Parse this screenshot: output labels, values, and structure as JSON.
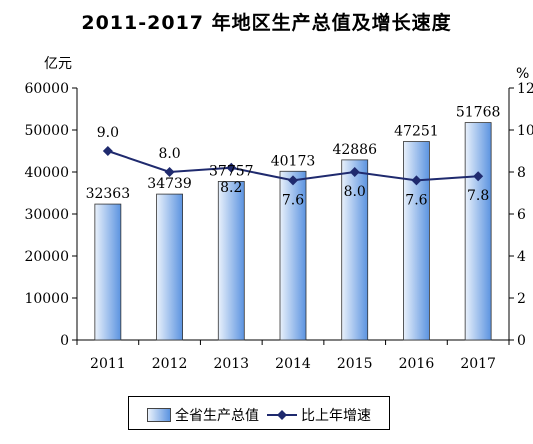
{
  "chart_data": {
    "type": "bar+line",
    "title": "2011-2017 年地区生产总值及增长速度",
    "categories": [
      "2011",
      "2012",
      "2013",
      "2014",
      "2015",
      "2016",
      "2017"
    ],
    "series": [
      {
        "name": "全省生产总值",
        "type": "bar",
        "axis": "left",
        "values": [
          32363,
          34739,
          37757,
          40173,
          42886,
          47251,
          51768
        ]
      },
      {
        "name": "比上年增速",
        "type": "line",
        "axis": "right",
        "values": [
          9.0,
          8.0,
          8.2,
          7.6,
          8.0,
          7.6,
          7.8
        ],
        "labels": [
          "9.0",
          "8.0",
          "8.2",
          "7.6",
          "8.0",
          "7.6",
          "7.8"
        ]
      }
    ],
    "y_left": {
      "unit": "亿元",
      "range": [
        0,
        60000
      ],
      "ticks": [
        "0",
        "10000",
        "20000",
        "30000",
        "40000",
        "50000",
        "60000"
      ]
    },
    "y_right": {
      "unit": "%",
      "range": [
        0,
        12
      ],
      "ticks": [
        "0",
        "2",
        "4",
        "6",
        "8",
        "10",
        "12"
      ]
    },
    "grid": false,
    "legend": "bottom",
    "colors": {
      "bar_light": "#e9f1fb",
      "bar_dark": "#5b93e0",
      "line": "#1f2a6e",
      "axis": "#000000"
    }
  }
}
